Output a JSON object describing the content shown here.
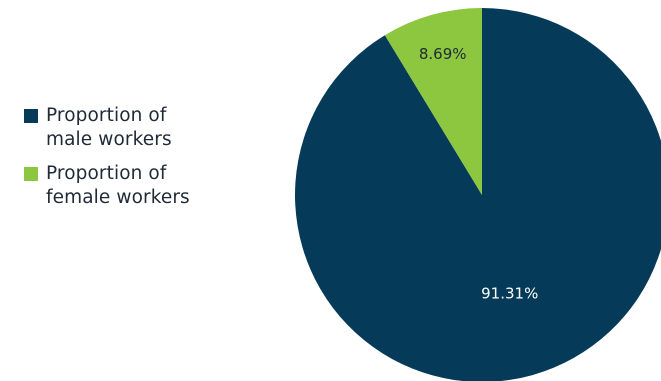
{
  "chart_data": {
    "type": "pie",
    "title": "",
    "slices": [
      {
        "label": "Proportion of male workers",
        "value": 91.31,
        "display": "91.31%",
        "color": "#053b59",
        "text_color": "#ffffff"
      },
      {
        "label": "Proportion of female workers",
        "value": 8.69,
        "display": "8.69%",
        "color": "#8dc63f",
        "text_color": "#1f2a37"
      }
    ],
    "legend_position": "left",
    "start_angle_deg": 0,
    "direction": "clockwise"
  },
  "legend": {
    "items": [
      {
        "label": "Proportion of male workers",
        "color": "#053b59"
      },
      {
        "label": "Proportion of female workers",
        "color": "#8dc63f"
      }
    ]
  }
}
